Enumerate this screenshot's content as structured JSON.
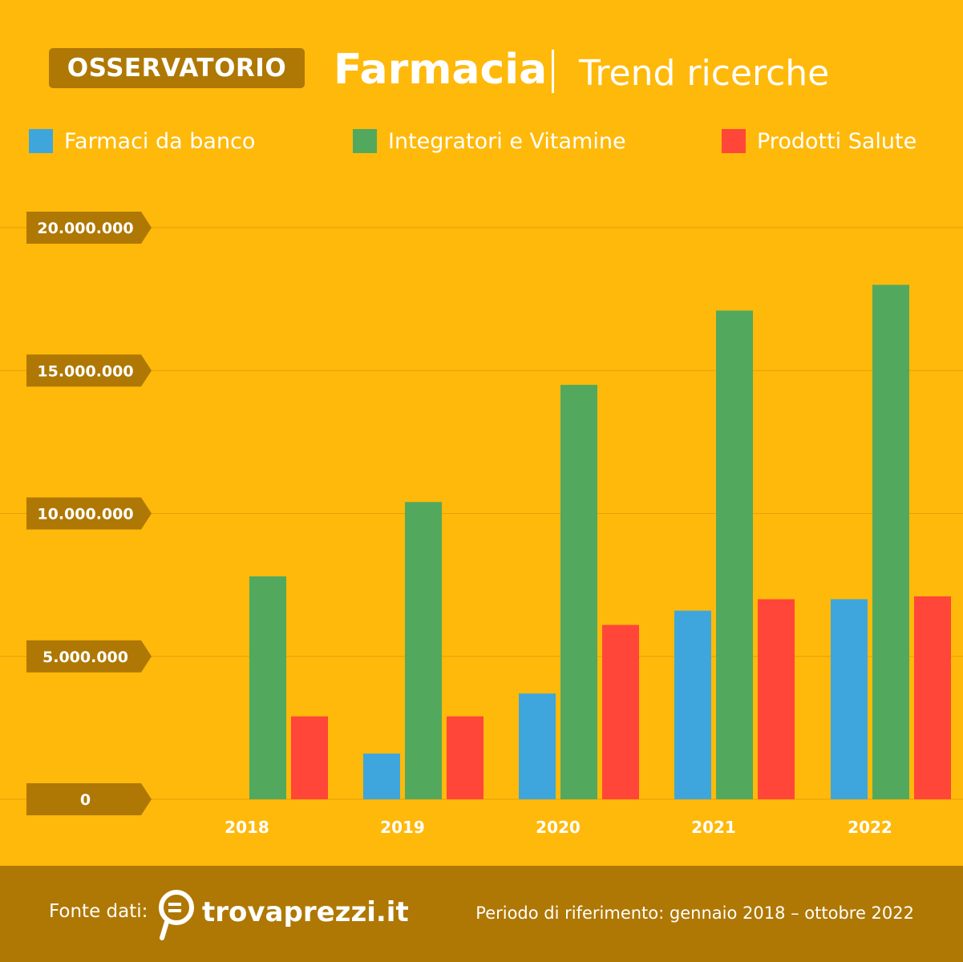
{
  "header": {
    "badge": "OSSERVATORIO",
    "title": "Farmacia",
    "separator": "|",
    "subtitle": "Trend ricerche"
  },
  "legend": [
    {
      "label": "Farmaci da banco",
      "color": "#3EA6DC"
    },
    {
      "label": "Integratori e Vitamine",
      "color": "#52A95D"
    },
    {
      "label": "Prodotti Salute",
      "color": "#FF4638"
    }
  ],
  "footer": {
    "source_label": "Fonte dati:",
    "brand": "trovaprezzi.it",
    "brand_icon": "magnifier-euro-icon",
    "period": "Periodo di riferimento: gennaio 2018 – ottobre 2022",
    "background": "#AF7804"
  },
  "colors": {
    "background": "#FFB90B",
    "tick_badge": "#AF7804",
    "text": "#FFFFFF"
  },
  "chart_data": {
    "type": "bar",
    "categories": [
      "2018",
      "2019",
      "2020",
      "2021",
      "2022"
    ],
    "series": [
      {
        "name": "Farmaci da banco",
        "values": [
          0,
          1600000,
          3700000,
          6600000,
          7000000
        ]
      },
      {
        "name": "Integratori e Vitamine",
        "values": [
          7800000,
          10400000,
          14500000,
          17100000,
          18000000
        ]
      },
      {
        "name": "Prodotti Salute",
        "values": [
          2900000,
          2900000,
          6100000,
          7000000,
          7100000
        ]
      }
    ],
    "yticks": [
      0,
      5000000,
      10000000,
      15000000,
      20000000
    ],
    "ytick_labels": [
      "0",
      "5.000.000",
      "10.000.000",
      "15.000.000",
      "20.000.000"
    ],
    "ylim": [
      0,
      20000000
    ],
    "grid": true,
    "legend_position": "top"
  }
}
